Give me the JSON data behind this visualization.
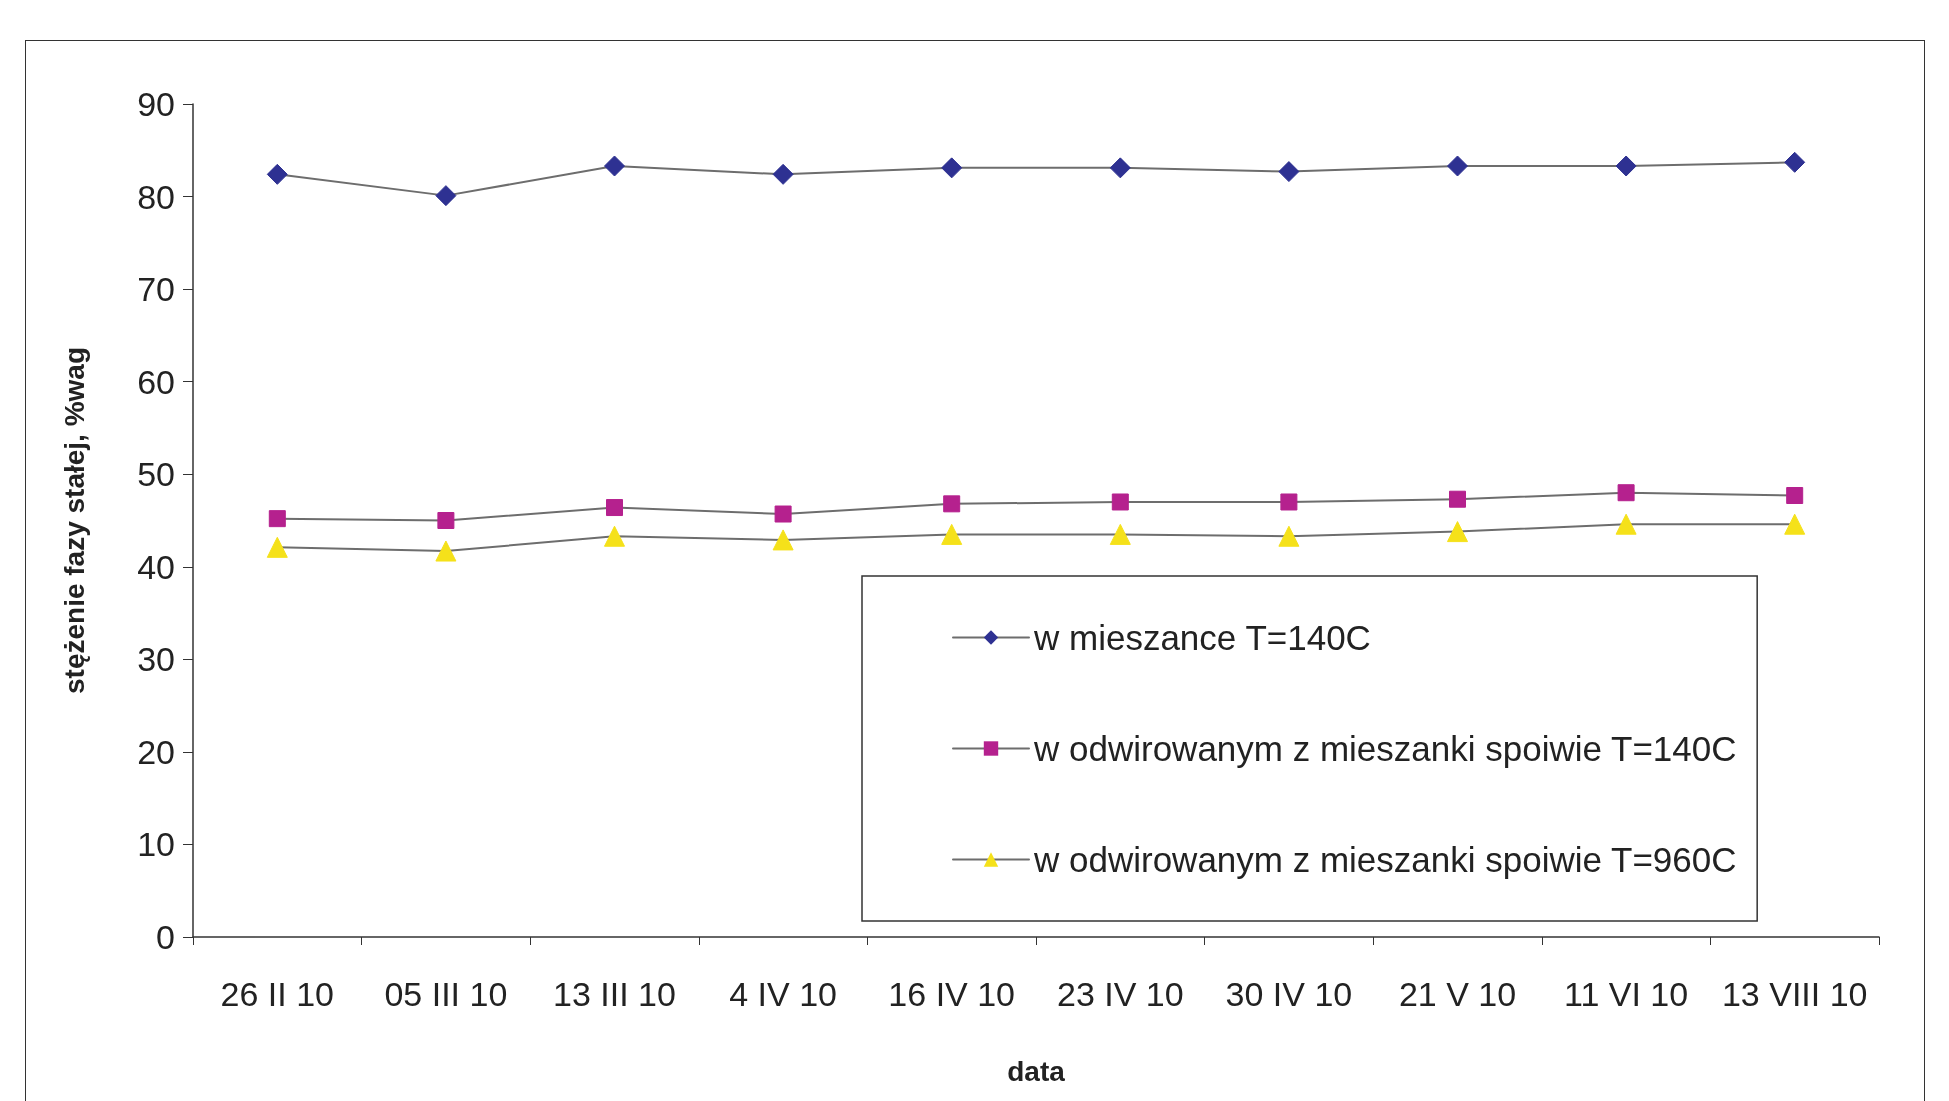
{
  "chart_data": {
    "type": "line",
    "xlabel": "data",
    "ylabel": "stężenie fazy stałej, %wag",
    "categories": [
      "26 II 10",
      "05 III 10",
      "13 III 10",
      "4 IV 10",
      "16 IV 10",
      "23 IV 10",
      "30 IV 10",
      "21 V 10",
      "11 VI 10",
      "13 VIII 10"
    ],
    "series": [
      {
        "name": "w mieszance T=140C",
        "color": "#2e3192",
        "marker": "diamond",
        "values": [
          82.4,
          80.1,
          83.3,
          82.4,
          83.1,
          83.1,
          82.7,
          83.3,
          83.3,
          83.7
        ]
      },
      {
        "name": "w odwirowanym z mieszanki spoiwie T=140C",
        "color": "#b5218e",
        "marker": "square",
        "values": [
          45.2,
          45.0,
          46.4,
          45.7,
          46.8,
          47.0,
          47.0,
          47.3,
          48.0,
          47.7
        ]
      },
      {
        "name": "w odwirowanym z mieszanki spoiwie T=960C",
        "color": "#f5e11a",
        "marker": "triangle",
        "values": [
          42.1,
          41.7,
          43.3,
          42.9,
          43.5,
          43.5,
          43.3,
          43.8,
          44.6,
          44.6
        ]
      }
    ],
    "ylim": [
      0,
      90
    ],
    "yticks": [
      0,
      10,
      20,
      30,
      40,
      50,
      60,
      70,
      80,
      90
    ],
    "grid": false,
    "legend": "bottom right",
    "line_style": "solid"
  }
}
